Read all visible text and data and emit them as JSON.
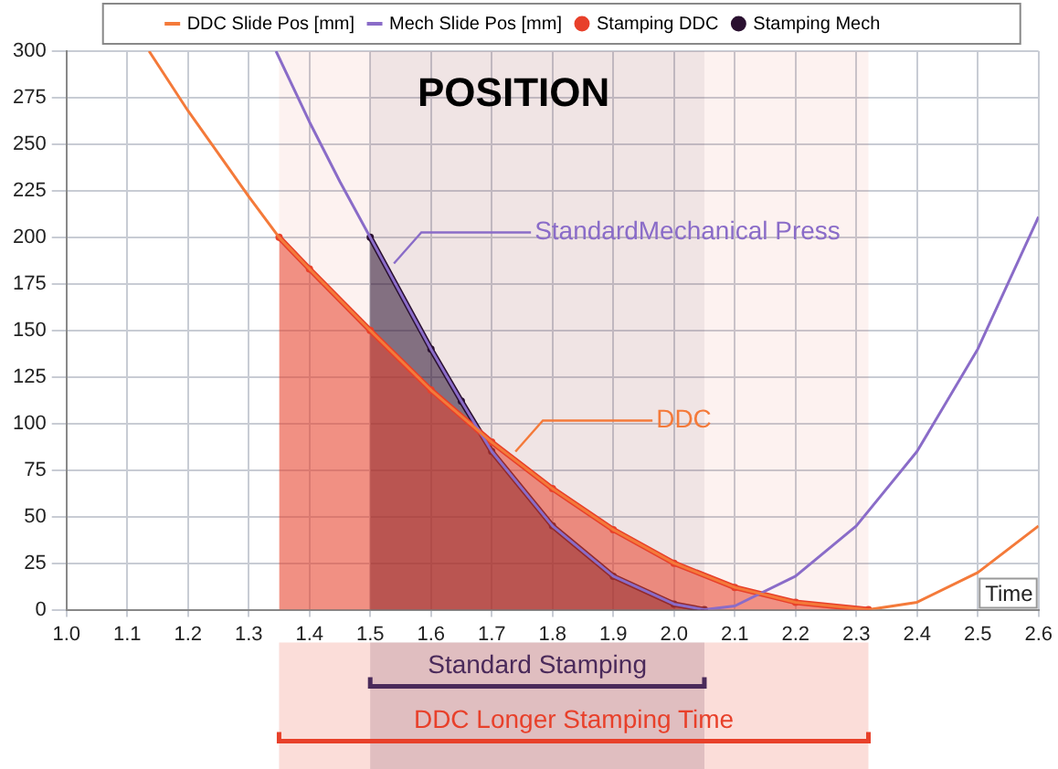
{
  "chart_data": {
    "type": "line",
    "title": "POSITION",
    "xlabel": "Time",
    "xlim": [
      1.0,
      2.6
    ],
    "xticks": [
      {
        "value": 1.0,
        "label": "1.0"
      },
      1.1,
      1.2,
      1.3,
      1.4,
      1.5,
      1.6,
      1.7,
      1.8,
      1.9,
      {
        "value": 2.0,
        "label": "2.0"
      },
      2.1,
      2.2,
      2.3,
      2.4,
      2.5,
      2.6
    ],
    "ylim": [
      0,
      300
    ],
    "yticks": [
      0,
      25,
      50,
      75,
      100,
      125,
      150,
      175,
      200,
      225,
      250,
      275,
      300
    ],
    "grid": true,
    "legend": "top",
    "series": [
      {
        "name": "DDC Slide Pos [mm]",
        "marker": "none",
        "color": "#f47a3a",
        "x": [
          1.136,
          1.2,
          1.3,
          1.35,
          1.4,
          1.5,
          1.6,
          1.7,
          1.8,
          1.9,
          2.0,
          2.1,
          2.2,
          2.32,
          2.4,
          2.5,
          2.6
        ],
        "values": [
          300,
          268,
          222,
          200,
          183,
          150,
          118,
          90,
          65,
          43,
          25,
          12,
          4,
          0,
          4,
          20,
          45
        ]
      },
      {
        "name": "Mech Slide Pos [mm]",
        "marker": "none",
        "color": "#8a6cc8",
        "x": [
          1.345,
          1.4,
          1.45,
          1.5,
          1.6,
          1.65,
          1.7,
          1.8,
          1.9,
          2.0,
          2.05,
          2.1,
          2.2,
          2.3,
          2.4,
          2.5,
          2.6
        ],
        "values": [
          300,
          262,
          230,
          200,
          140,
          112,
          85,
          45,
          18,
          3,
          0,
          2,
          18,
          45,
          85,
          140,
          211
        ]
      },
      {
        "name": "Stamping DDC",
        "type": "area",
        "marker": "circle",
        "color": "#e8402a",
        "x": [
          1.35,
          1.4,
          1.5,
          1.6,
          1.7,
          1.8,
          1.9,
          2.0,
          2.1,
          2.2,
          2.32
        ],
        "values": [
          200,
          183,
          150,
          118,
          90,
          65,
          43,
          25,
          12,
          4,
          0
        ]
      },
      {
        "name": "Stamping Mech",
        "type": "area",
        "marker": "circle",
        "color": "#2a1030",
        "x": [
          1.5,
          1.6,
          1.65,
          1.7,
          1.8,
          1.9,
          2.0,
          2.05
        ],
        "values": [
          200,
          140,
          112,
          85,
          45,
          18,
          3,
          0
        ]
      }
    ],
    "annotations": [
      {
        "text": "StandardMechanical Press",
        "x": 1.53,
        "y": 183
      },
      {
        "text": "DDC",
        "x": 1.73,
        "y": 82
      }
    ],
    "bands": [
      {
        "axis": "x",
        "from": 1.5,
        "to": 2.05,
        "label": "Standard Stamping",
        "color": "#4a2a5a"
      },
      {
        "axis": "x",
        "from": 1.35,
        "to": 2.32,
        "label": "DDC Longer Stamping Time",
        "color": "#e8402a"
      }
    ]
  }
}
